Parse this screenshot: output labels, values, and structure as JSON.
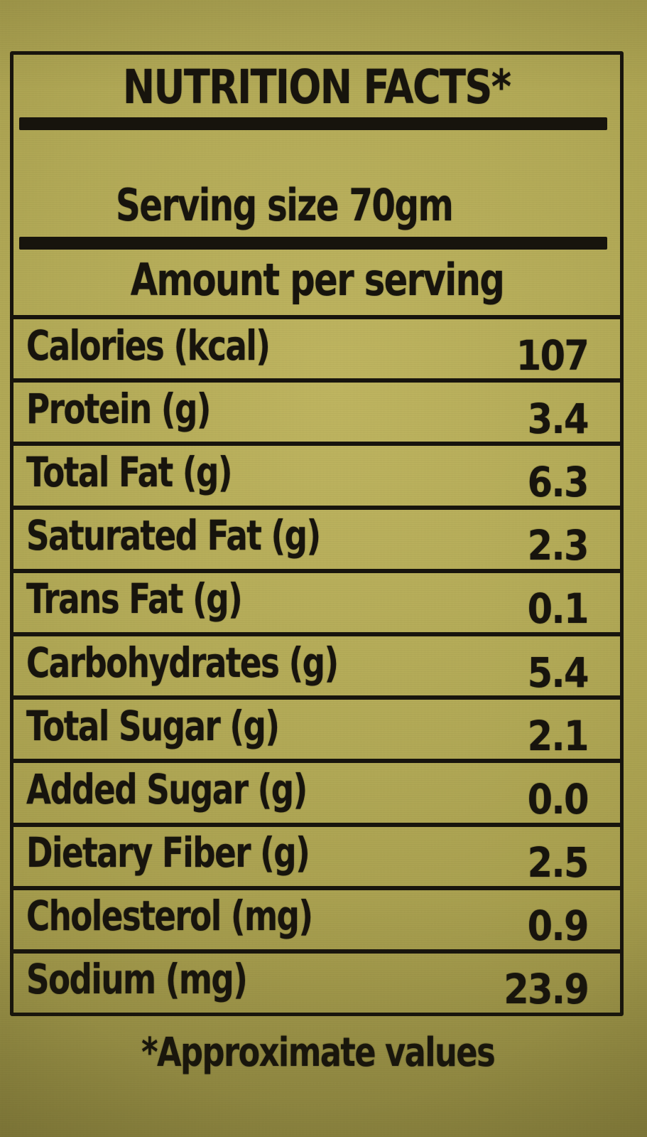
{
  "label": {
    "title": "NUTRITION FACTS*",
    "serving_size": "Serving size 70gm",
    "amount_header": "Amount per serving",
    "rows": [
      {
        "name": "Calories (kcal)",
        "value": "107"
      },
      {
        "name": "Protein (g)",
        "value": "3.4"
      },
      {
        "name": "Total Fat (g)",
        "value": "6.3"
      },
      {
        "name": "Saturated Fat (g)",
        "value": "2.3"
      },
      {
        "name": "Trans Fat (g)",
        "value": "0.1"
      },
      {
        "name": "Carbohydrates (g)",
        "value": "5.4"
      },
      {
        "name": "Total Sugar (g)",
        "value": "2.1"
      },
      {
        "name": "Added Sugar (g)",
        "value": "0.0"
      },
      {
        "name": "Dietary Fiber (g)",
        "value": "2.5"
      },
      {
        "name": "Cholesterol (mg)",
        "value": "0.9"
      },
      {
        "name": "Sodium (mg)",
        "value": "23.9"
      }
    ],
    "footnote": "*Approximate values",
    "colors": {
      "background": "#b0a754",
      "ink": "#17140d"
    }
  }
}
